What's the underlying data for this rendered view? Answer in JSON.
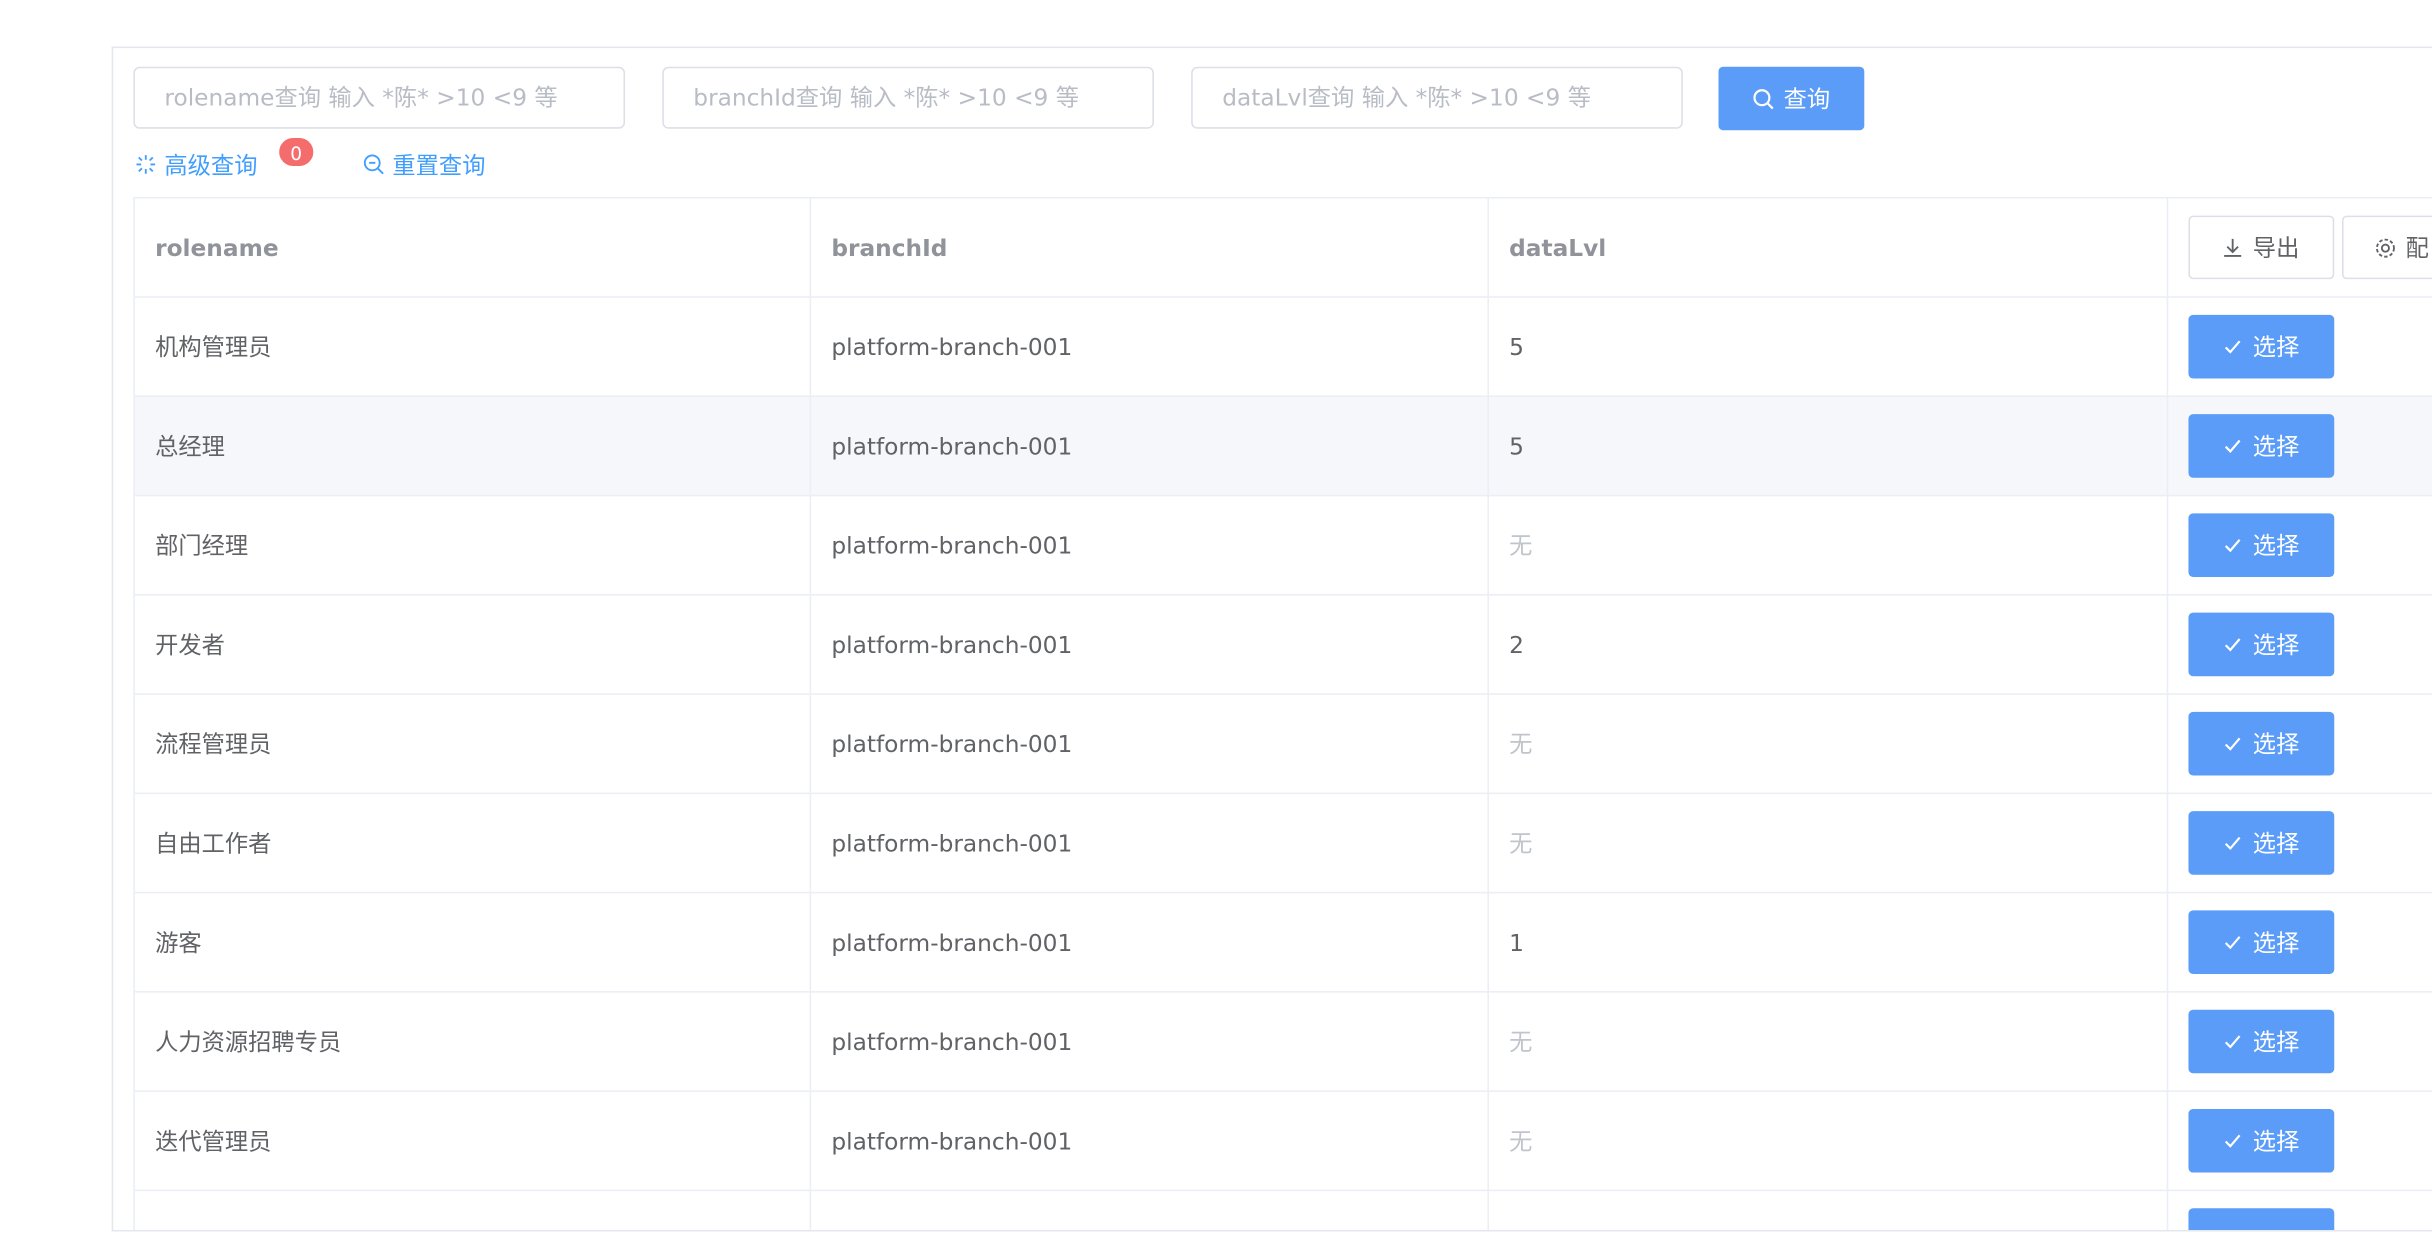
{
  "filters": {
    "placeholders": [
      "rolename查询 输入 *陈* >10 <9 等",
      "branchId查询 输入 *陈* >10 <9 等",
      "dataLvl查询 输入 *陈* >10 <9 等"
    ],
    "search_button": "查询",
    "advanced_link": "高级查询",
    "advanced_count": "0",
    "reset_link": "重置查询"
  },
  "table": {
    "headers": [
      "rolename",
      "branchId",
      "dataLvl"
    ],
    "export_button": "导出",
    "config_button": "配",
    "select_button": "选择",
    "rows": [
      [
        "机构管理员",
        "platform-branch-001",
        "5"
      ],
      [
        "总经理",
        "platform-branch-001",
        "5"
      ],
      [
        "部门经理",
        "platform-branch-001",
        "无"
      ],
      [
        "开发者",
        "platform-branch-001",
        "2"
      ],
      [
        "流程管理员",
        "platform-branch-001",
        "无"
      ],
      [
        "自由工作者",
        "platform-branch-001",
        "无"
      ],
      [
        "游客",
        "platform-branch-001",
        "1"
      ],
      [
        "人力资源招聘专员",
        "platform-branch-001",
        "无"
      ],
      [
        "迭代管理员",
        "platform-branch-001",
        "无"
      ]
    ]
  }
}
